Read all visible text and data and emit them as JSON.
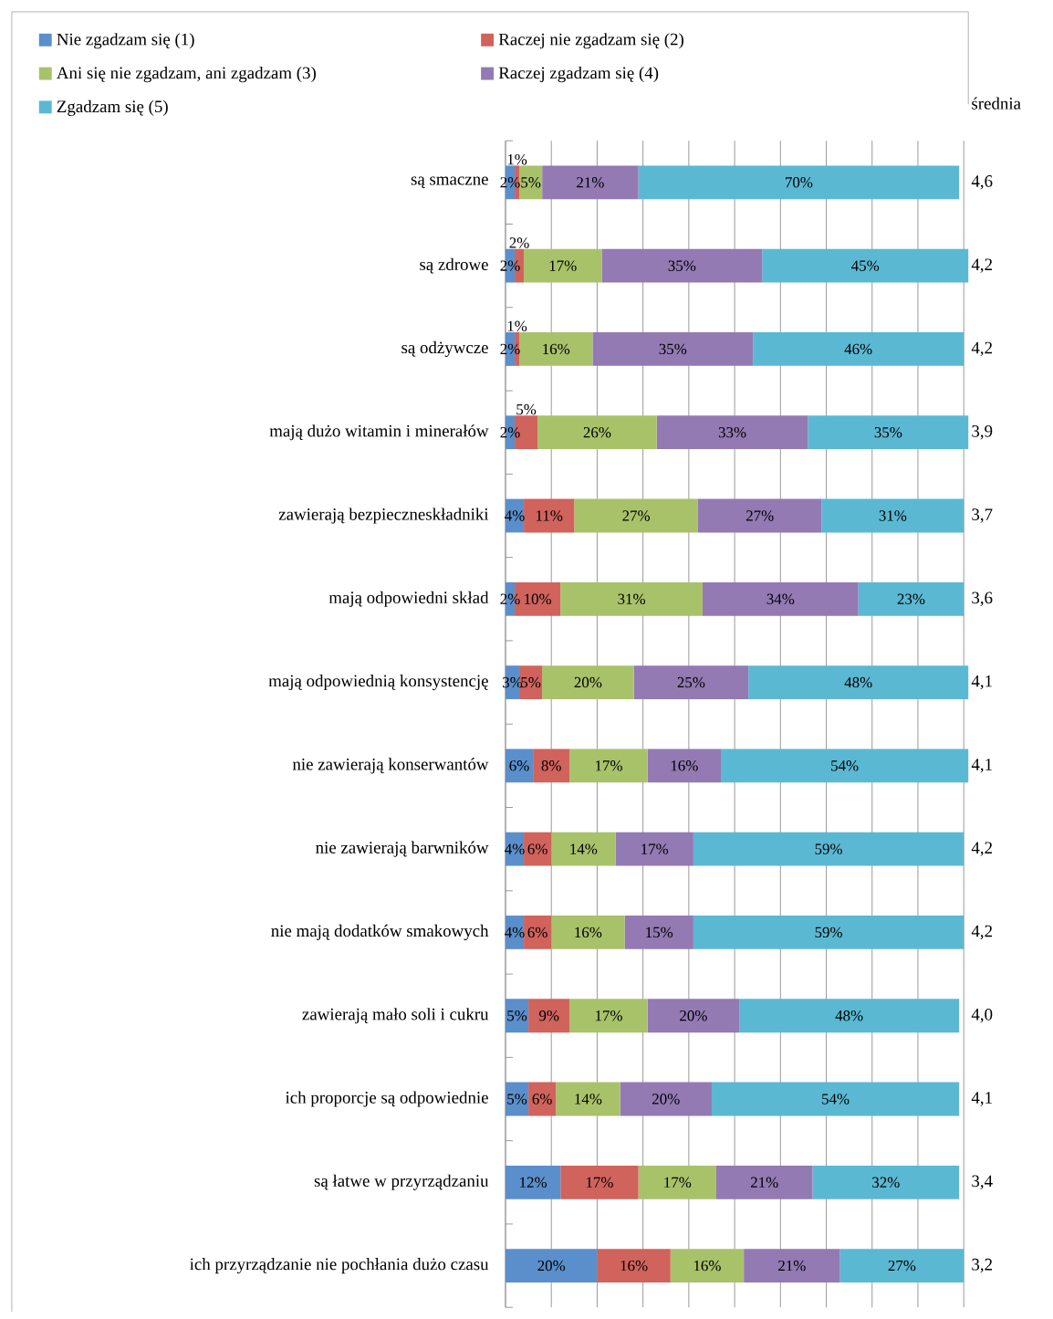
{
  "chart_data": {
    "type": "bar",
    "orientation": "horizontal",
    "stacked": true,
    "categories": [
      "są smaczne",
      "są zdrowe",
      "są odżywcze",
      "mają dużo witamin i minerałów",
      "zawierają bezpieczneskładniki",
      "mają odpowiedni skład",
      "mają odpowiednią konsystencję",
      "nie zawierają konserwantów",
      "nie zawierają barwników",
      "nie mają dodatków smakowych",
      "zawierają mało soli i cukru",
      "ich proporcje są odpowiednie",
      "są łatwe w przyrządzaniu",
      "ich przyrządzanie nie pochłania dużo czasu"
    ],
    "series": [
      {
        "name": "Nie zgadzam się (1)",
        "color": "#5b8fcb",
        "values": [
          2,
          2,
          2,
          2,
          4,
          2,
          3,
          6,
          4,
          4,
          5,
          5,
          12,
          20
        ],
        "value_labels": [
          "2%",
          "2%",
          "2%",
          "2%",
          "4%",
          "2%",
          "3%",
          "6%",
          "4%",
          "4%",
          "5%",
          "5%",
          "12%",
          "20%"
        ]
      },
      {
        "name": "Raczej nie zgadzam się (2)",
        "color": "#d0635c",
        "values": [
          1,
          2,
          1,
          5,
          11,
          10,
          5,
          8,
          6,
          6,
          9,
          6,
          17,
          16
        ],
        "value_labels": [
          "1%",
          "2%",
          "1%",
          "5%",
          "11%",
          "10%",
          "5%",
          "8%",
          "6%",
          "6%",
          "9%",
          "6%",
          "17%",
          "16%"
        ]
      },
      {
        "name": "Ani się nie zgadzam, ani zgadzam (3)",
        "color": "#a8c26a",
        "values": [
          5,
          17,
          16,
          26,
          27,
          31,
          20,
          17,
          14,
          16,
          17,
          14,
          17,
          16
        ],
        "value_labels": [
          "5%",
          "17%",
          "16%",
          "26%",
          "27%",
          "31%",
          "20%",
          "17%",
          "14%",
          "16%",
          "17%",
          "14%",
          "17%",
          "16%"
        ]
      },
      {
        "name": "Raczej zgadzam się (4)",
        "color": "#937ab3",
        "values": [
          21,
          35,
          35,
          33,
          27,
          34,
          25,
          16,
          17,
          15,
          20,
          20,
          21,
          21
        ],
        "value_labels": [
          "21%",
          "35%",
          "35%",
          "33%",
          "27%",
          "34%",
          "25%",
          "16%",
          "17%",
          "15%",
          "20%",
          "20%",
          "21%",
          "21%"
        ]
      },
      {
        "name": "Zgadzam się (5)",
        "color": "#5bb8d3",
        "values": [
          70,
          45,
          46,
          35,
          31,
          23,
          48,
          54,
          59,
          59,
          48,
          54,
          32,
          27
        ],
        "value_labels": [
          "70%",
          "45%",
          "46%",
          "35%",
          "31%",
          "23%",
          "48%",
          "54%",
          "59%",
          "59%",
          "48%",
          "54%",
          "32%",
          "27%"
        ]
      }
    ],
    "xlim": [
      0,
      101
    ],
    "xticks": [
      {
        "value": 0,
        "label": null
      },
      {
        "value": 10,
        "label": null
      },
      {
        "value": 20,
        "label": null
      },
      {
        "value": 30,
        "label": null
      },
      {
        "value": 40,
        "label": null
      },
      {
        "value": 50,
        "label": null
      },
      {
        "value": 60,
        "label": null
      },
      {
        "value": 70,
        "label": null
      },
      {
        "value": 80,
        "label": null
      },
      {
        "value": 90,
        "label": null
      },
      {
        "value": 100,
        "label": null
      }
    ],
    "tick_labels": "y",
    "grid": "x",
    "legend": "top",
    "annotations": [
      "średnia",
      "4,6",
      "4,2",
      "4,2",
      "3,9",
      "3,7",
      "3,6",
      "4,1",
      "4,1",
      "4,2",
      "4,2",
      "4,0",
      "4,1",
      "3,4",
      "3,2"
    ]
  }
}
